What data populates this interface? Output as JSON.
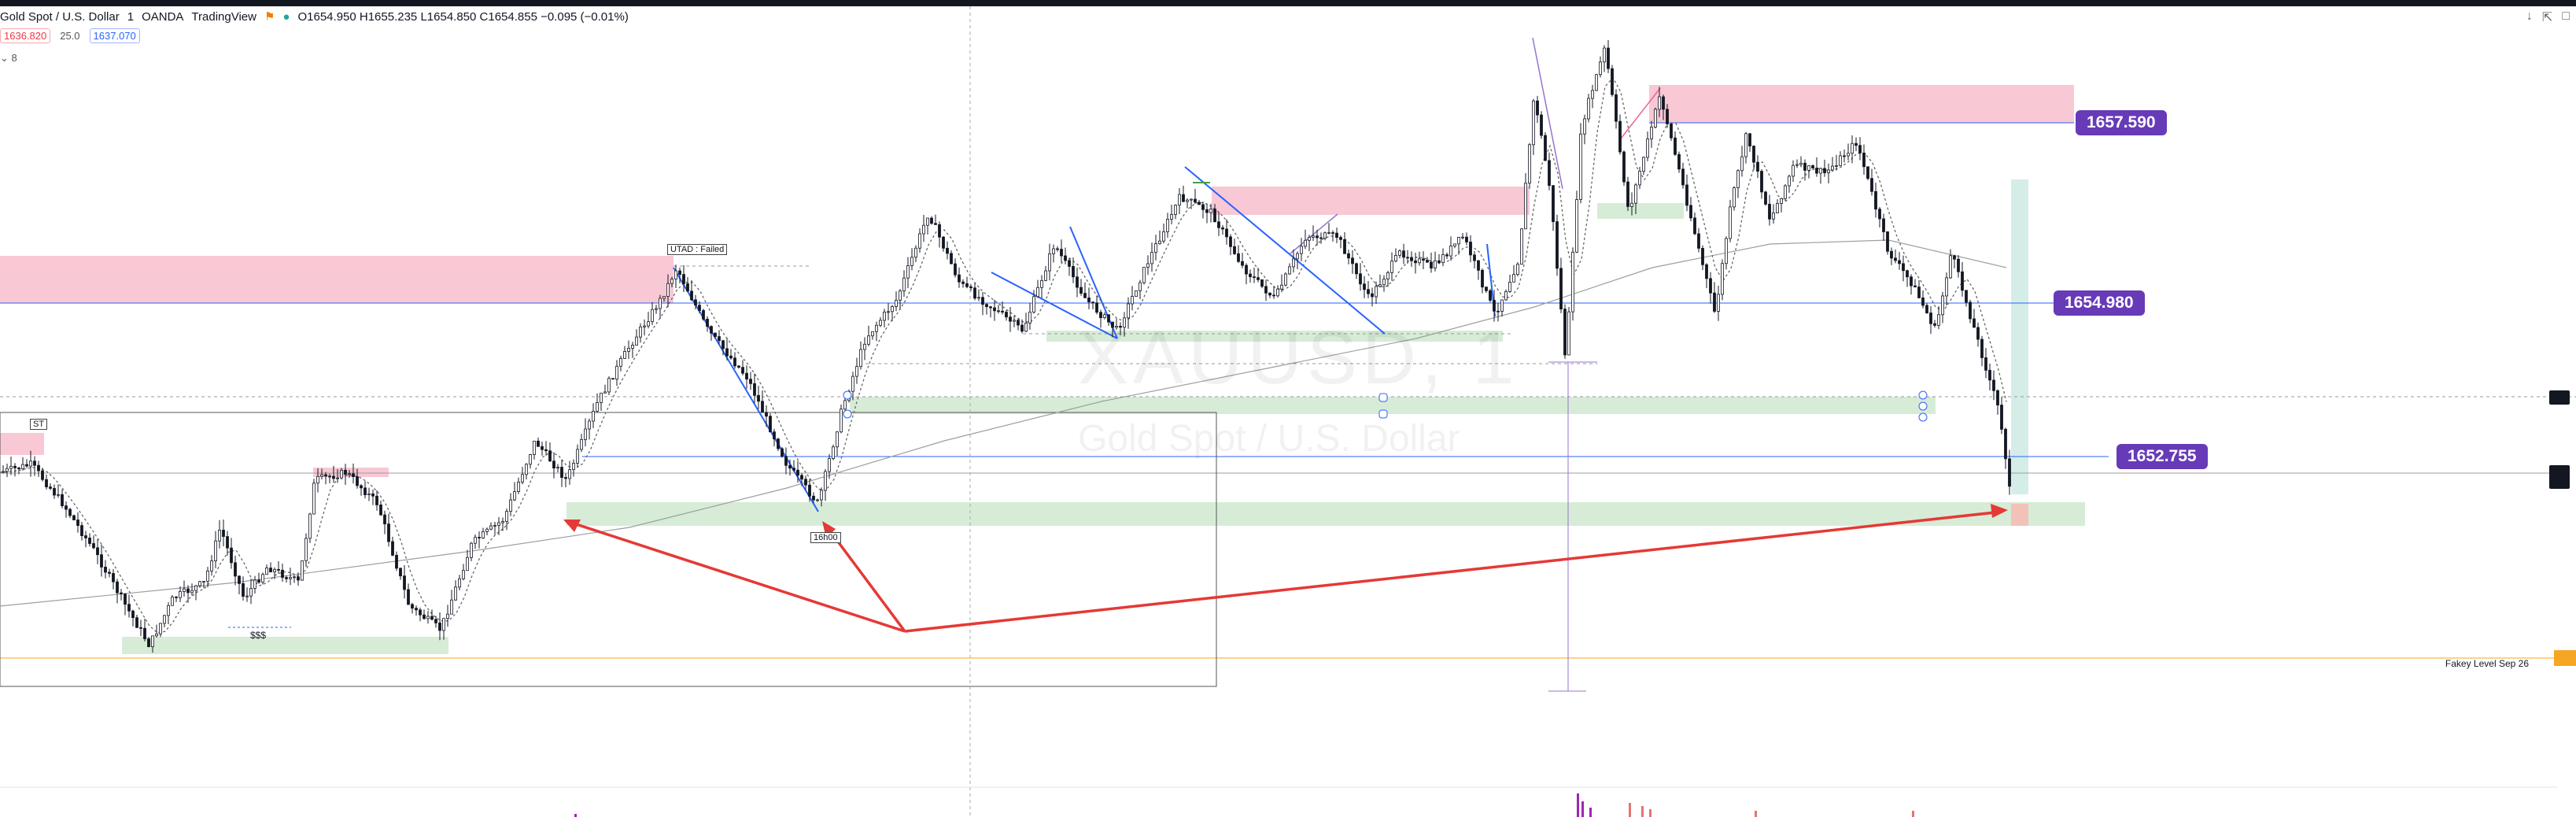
{
  "header": {
    "symbol": "Gold Spot / U.S. Dollar",
    "interval": "1",
    "exchange": "OANDA",
    "platform": "TradingView",
    "ohlc": "O1654.950  H1655.235  L1654.850  C1654.855  −0.095 (−0.01%)"
  },
  "trade": {
    "sell_price": "1636.820",
    "quantity": "25.0",
    "buy_price": "1637.070"
  },
  "collapse_label": "8",
  "watermark": {
    "ticker": "XAUUSD, 1",
    "description": "Gold Spot / U.S. Dollar"
  },
  "price_pills": {
    "top": "1657.590",
    "middle": "1654.980",
    "bottom": "1652.755"
  },
  "annotations": {
    "utad": "UTAD : Failed",
    "st": "ST",
    "sss": "$$$",
    "sixteen_hours": "16h00",
    "fakey": "Fakey Level Sep 26"
  },
  "colors": {
    "supply_zone": "#f8c8d4",
    "demand_zone": "#d6ecd6",
    "trend_line": "#2962ff",
    "arrow": "#e53935",
    "price_pill": "#673ab7",
    "fakey_line": "#f5a623"
  },
  "icons": [
    "arrow-down-icon",
    "expand-icon",
    "maximize-icon"
  ]
}
